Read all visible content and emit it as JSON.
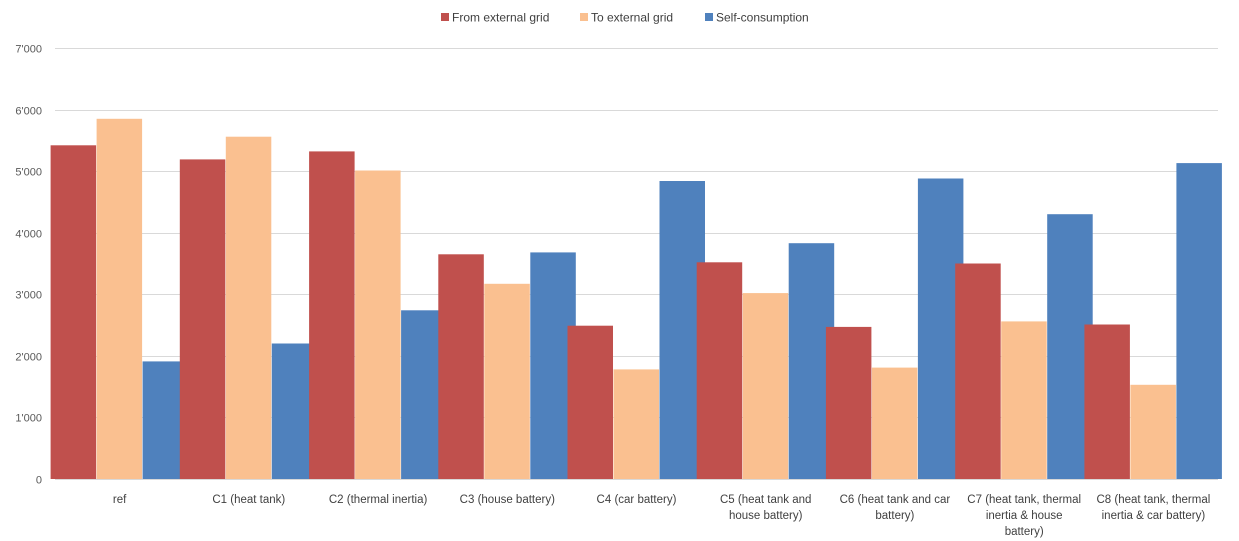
{
  "chart_data": {
    "type": "bar",
    "title": "",
    "xlabel": "",
    "ylabel": "",
    "ylim": [
      0,
      7000
    ],
    "yticks": [
      0,
      1000,
      2000,
      3000,
      4000,
      5000,
      6000,
      7000
    ],
    "ytick_labels": [
      "0",
      "1'000",
      "2'000",
      "3'000",
      "4'000",
      "5'000",
      "6'000",
      "7'000"
    ],
    "grid": true,
    "legend_position": "top-center",
    "categories": [
      "ref",
      "C1 (heat tank)",
      "C2 (thermal inertia)",
      "C3 (house battery)",
      "C4 (car battery)",
      "C5 (heat tank and house battery)",
      "C6 (heat tank and car battery)",
      "C7 (heat tank, thermal inertia & house battery)",
      "C8 (heat tank, thermal inertia & car battery)"
    ],
    "category_label_lines": [
      [
        "ref"
      ],
      [
        "C1 (heat tank)"
      ],
      [
        "C2 (thermal inertia)"
      ],
      [
        "C3 (house battery)"
      ],
      [
        "C4 (car battery)"
      ],
      [
        "C5 (heat tank and",
        "house battery)"
      ],
      [
        "C6 (heat tank and car",
        "battery)"
      ],
      [
        "C7 (heat tank, thermal",
        "inertia & house",
        "battery)"
      ],
      [
        "C8 (heat tank, thermal",
        "inertia & car battery)"
      ]
    ],
    "series": [
      {
        "name": "From external grid",
        "color": "#c0504d",
        "values": [
          5420,
          5190,
          5320,
          3650,
          2490,
          3520,
          2470,
          3500,
          2510
        ]
      },
      {
        "name": "To external grid",
        "color": "#fac090",
        "values": [
          5850,
          5560,
          5010,
          3170,
          1780,
          3020,
          1810,
          2560,
          1530
        ]
      },
      {
        "name": "Self-consumption",
        "color": "#4f81bd",
        "values": [
          1910,
          2200,
          2740,
          3680,
          4840,
          3830,
          4880,
          4300,
          5130
        ]
      }
    ]
  }
}
